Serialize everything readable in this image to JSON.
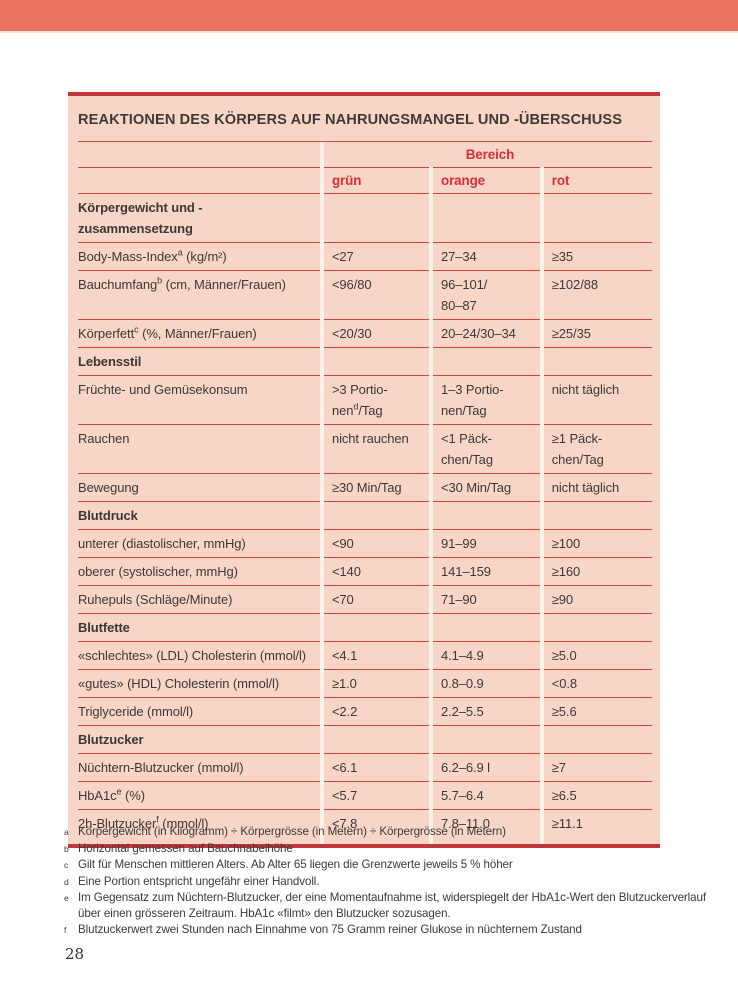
{
  "page": {
    "number": "28"
  },
  "colors": {
    "top_bar": "#e97560",
    "table_background": "#f8d6c7",
    "accent_red": "#d52f35",
    "rule_red": "#c7473f",
    "border_dark_red": "#c2363c",
    "column_separator": "#fdf2ea",
    "text_dark": "#3d3835"
  },
  "table": {
    "title": "REAKTIONEN DES KÖRPERS AUF NAHRUNGSMANGEL UND -ÜBERSCHUSS",
    "group_header": "Bereich",
    "columns": [
      "grün",
      "orange",
      "rot"
    ],
    "sections": [
      {
        "heading": "Körpergewicht und -zusammensetzung",
        "rows": [
          {
            "label": "Body-Mass-Index^a (kg/m²)",
            "gruen": "<27",
            "orange": "27–34",
            "rot": "≥35"
          },
          {
            "label": "Bauchumfang^b (cm, Männer/Frauen)",
            "gruen": "<96/80",
            "orange": "96–101/\n80–87",
            "rot": "≥102/88"
          },
          {
            "label": "Körperfett^c (%, Männer/Frauen)",
            "gruen": "<20/30",
            "orange": "20–24/30–34",
            "rot": "≥25/35"
          }
        ]
      },
      {
        "heading": "Lebensstil",
        "rows": [
          {
            "label": "Früchte- und Gemüsekonsum",
            "gruen": ">3 Portio-\nnen^d/Tag",
            "orange": "1–3 Portio-\nnen/Tag",
            "rot": "nicht täglich"
          },
          {
            "label": "Rauchen",
            "gruen": "nicht rauchen",
            "orange": "<1 Päck-\nchen/Tag",
            "rot": "≥1 Päck-\nchen/Tag"
          },
          {
            "label": "Bewegung",
            "gruen": "≥30 Min/Tag",
            "orange": "<30 Min/Tag",
            "rot": "nicht täglich"
          }
        ]
      },
      {
        "heading": "Blutdruck",
        "rows": [
          {
            "label": "unterer (diastolischer, mmHg)",
            "gruen": "<90",
            "orange": "91–99",
            "rot": "≥100"
          },
          {
            "label": "oberer (systolischer, mmHg)",
            "gruen": "<140",
            "orange": "141–159",
            "rot": "≥160"
          },
          {
            "label": "Ruhepuls (Schläge/Minute)",
            "gruen": "<70",
            "orange": "71–90",
            "rot": "≥90"
          }
        ]
      },
      {
        "heading": "Blutfette",
        "rows": [
          {
            "label": "«schlechtes» (LDL) Cholesterin (mmol/l)",
            "gruen": "<4.1",
            "orange": "4.1–4.9",
            "rot": "≥5.0"
          },
          {
            "label": "«gutes» (HDL) Cholesterin (mmol/l)",
            "gruen": "≥1.0",
            "orange": "0.8–0.9",
            "rot": "<0.8"
          },
          {
            "label": "Triglyceride (mmol/l)",
            "gruen": "<2.2",
            "orange": "2.2–5.5",
            "rot": "≥5.6"
          }
        ]
      },
      {
        "heading": "Blutzucker",
        "rows": [
          {
            "label": "Nüchtern-Blutzucker (mmol/l)",
            "gruen": "<6.1",
            "orange": "6.2–6.9 l",
            "rot": "≥7"
          },
          {
            "label": "HbA1c^e (%)",
            "gruen": "<5.7",
            "orange": "5.7–6.4",
            "rot": "≥6.5"
          },
          {
            "label": "2h-Blutzucker^f (mmol/l)",
            "gruen": "<7.8",
            "orange": "7.8–11.0",
            "rot": "≥11.1"
          }
        ]
      }
    ]
  },
  "footnotes": [
    {
      "marker": "a",
      "text": "Körpergewicht (in Kilogramm) ÷ Körpergrösse (in Metern) ÷ Körpergrösse (in Metern)"
    },
    {
      "marker": "b",
      "text": "Horizontal gemessen auf Bauchnabelhöhe"
    },
    {
      "marker": "c",
      "text": "Gilt für Menschen mittleren Alters. Ab Alter 65 liegen die Grenzwerte jeweils 5 % höher"
    },
    {
      "marker": "d",
      "text": "Eine Portion entspricht ungefähr einer Handvoll."
    },
    {
      "marker": "e",
      "text": "Im Gegensatz zum Nüchtern-Blutzucker, der eine Momentaufnahme ist, widerspiegelt der HbA1c-Wert den Blutzuckerverlauf über einen grösseren Zeitraum. HbA1c «filmt» den Blutzucker sozusagen."
    },
    {
      "marker": "f",
      "text": "Blutzuckerwert zwei Stunden nach Einnahme von 75 Gramm reiner Glukose in nüchternem Zustand"
    }
  ]
}
